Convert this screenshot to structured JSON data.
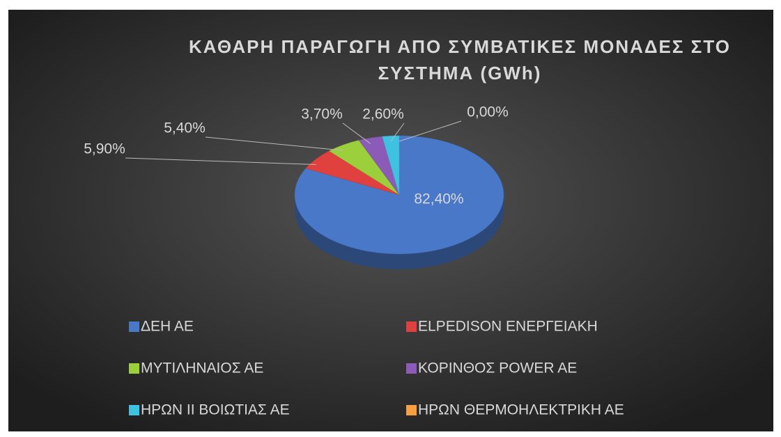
{
  "chart_data": {
    "type": "pie",
    "title": "ΚΑΘΑΡΗ ΠΑΡΑΓΩΓΗ ΑΠΟ ΣΥΜΒΑΤΙΚΕΣ ΜΟΝΑΔΕΣ ΣΤΟ ΣΥΣΤΗΜΑ (GWh)",
    "categories": [
      "ΔΕΗ ΑΕ",
      "ELPEDISON ΕΝΕΡΓΕΙΑΚΗ",
      "ΜΥΤΙΛΗΝΑΙΟΣ ΑΕ",
      "ΚΟΡΙΝΘΟΣ POWER AE",
      "ΗΡΩΝ ΙΙ ΒΟΙΩΤΙΑΣ ΑΕ",
      "ΗΡΩΝ ΘΕΡΜΟΗΛΕΚΤΡΙΚΗ ΑΕ"
    ],
    "values": [
      82.4,
      5.9,
      5.4,
      3.7,
      2.6,
      0.0
    ],
    "value_labels": [
      "82,40%",
      "5,90%",
      "5,40%",
      "3,70%",
      "2,60%",
      "0,00%"
    ],
    "colors": [
      "#4a78c8",
      "#e0413f",
      "#9ccf3c",
      "#8c5bb8",
      "#3fc1e2",
      "#f8a040"
    ],
    "legend": "bottom"
  }
}
